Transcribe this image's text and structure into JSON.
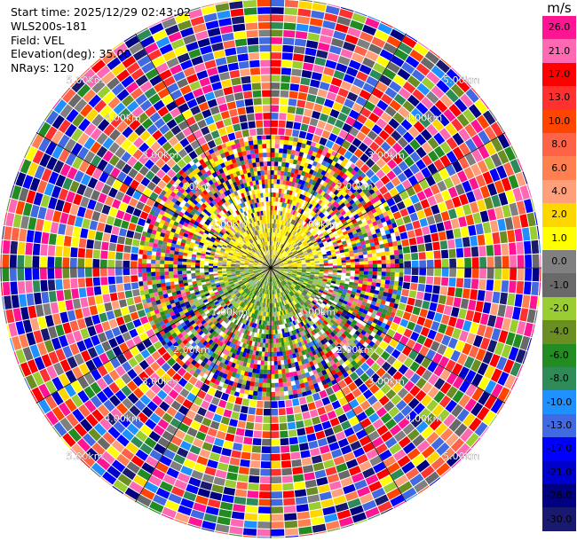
{
  "metadata": {
    "start_time": "Start time: 2025/12/29 02:43:02",
    "instrument": "WLS200s-181",
    "field": "Field: VEL",
    "elevation": "Elevation(deg): 35.00",
    "nrays": "NRays: 120"
  },
  "range_ring_labels": [
    "1.00km",
    "2.00km",
    "3.00km",
    "4.00km",
    "5.00km"
  ],
  "colorbar": {
    "unit": "m/s",
    "ticks": [
      "26.0",
      "21.0",
      "17.0",
      "13.0",
      "10.0",
      "8.0",
      "6.0",
      "4.0",
      "2.0",
      "1.0",
      "0.0",
      "-1.0",
      "-2.0",
      "-4.0",
      "-6.0",
      "-8.0",
      "-10.0",
      "-13.0",
      "-17.0",
      "-21.0",
      "-26.0",
      "-30.0"
    ],
    "colors": [
      "#ff1493",
      "#ff69b4",
      "#ff0000",
      "#ff3030",
      "#ff4500",
      "#ff6347",
      "#ff7f50",
      "#ffa07a",
      "#ffd700",
      "#ffff00",
      "#808080",
      "#696969",
      "#9acd32",
      "#6b8e23",
      "#228b22",
      "#2e8b57",
      "#1e90ff",
      "#4169e1",
      "#0000ff",
      "#0000cd",
      "#000080",
      "#191970"
    ]
  }
}
